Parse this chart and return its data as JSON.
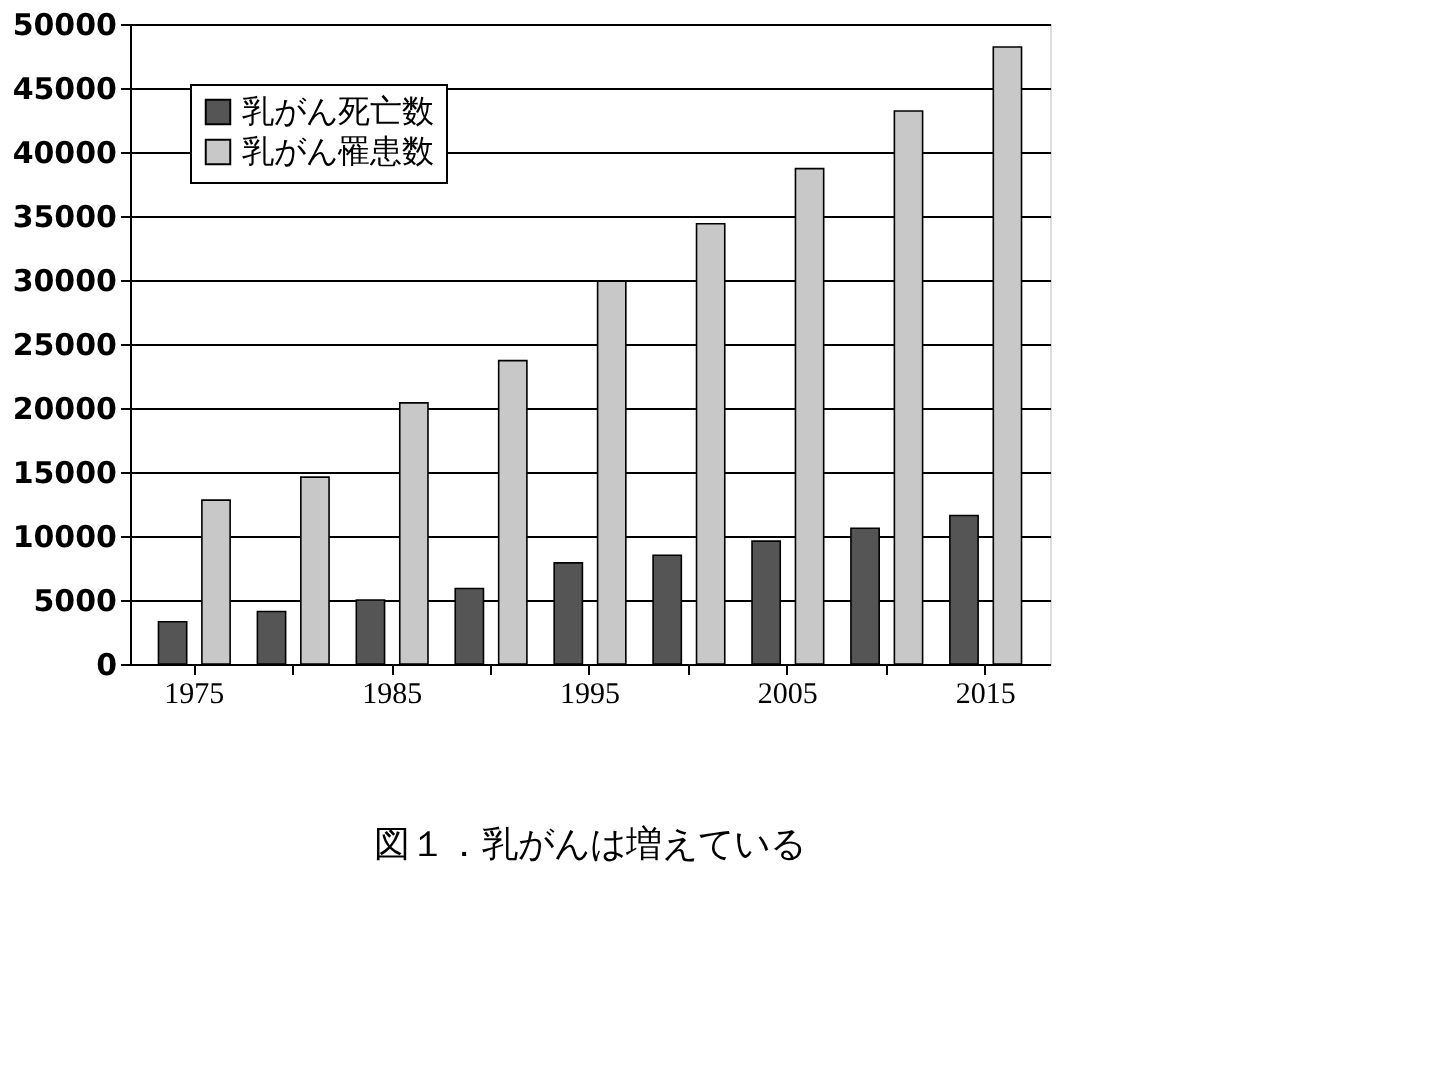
{
  "chart_data": {
    "type": "bar",
    "title": "図１．乳がんは増えている",
    "categories": [
      "1975",
      null,
      "1985",
      null,
      "1995",
      null,
      "2005",
      null,
      "2015",
      null
    ],
    "series": [
      {
        "name": "乳がん死亡数",
        "color": "#555555",
        "values": [
          3300,
          4100,
          5000,
          5900,
          7900,
          8500,
          9600,
          10600,
          11600,
          null
        ]
      },
      {
        "name": "乳がん罹患数",
        "color": "#c8c8c8",
        "values": [
          12800,
          14600,
          20400,
          23700,
          29900,
          34400,
          38700,
          43200,
          48200,
          null
        ]
      }
    ],
    "ylim": [
      0,
      50000
    ],
    "yticks": [
      0,
      5000,
      10000,
      15000,
      20000,
      25000,
      30000,
      35000,
      40000,
      45000,
      50000
    ],
    "grid": "y",
    "legend": "top left"
  }
}
